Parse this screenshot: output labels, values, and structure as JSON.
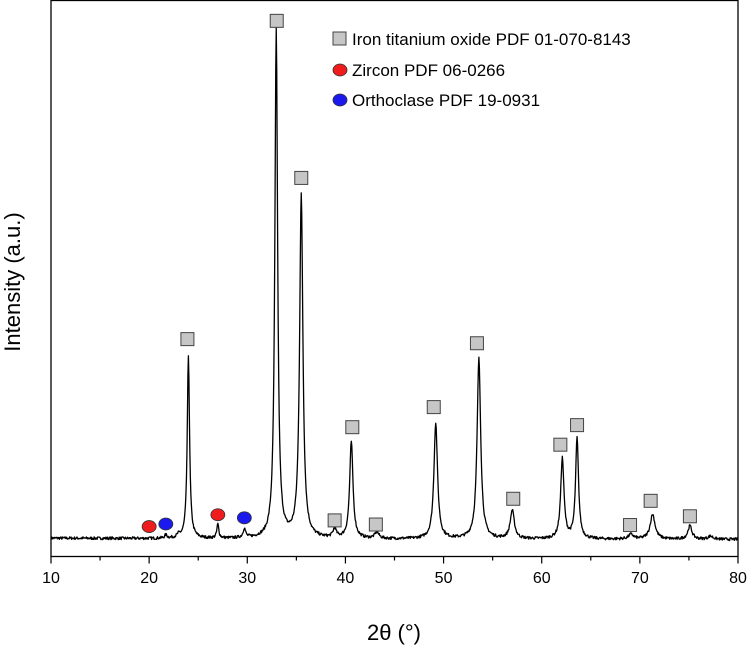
{
  "chart_data": {
    "type": "line",
    "xlabel": "2θ (°)",
    "ylabel": "Intensity (a.u.)",
    "xlim": [
      10,
      80
    ],
    "ylim": [
      0,
      100
    ],
    "x_ticks": [
      "10",
      "20",
      "30",
      "40",
      "50",
      "60",
      "70",
      "80"
    ],
    "y_ticks_shown": false,
    "grid": false,
    "legend_position": "top-right",
    "series": [
      {
        "name": "",
        "color": "#000000",
        "baseline": 0.3,
        "peaks": [
          {
            "x": 21.7,
            "height": 0.6,
            "width": 0.15
          },
          {
            "x": 23.0,
            "height": 0.5,
            "width": 0.2
          },
          {
            "x": 24.0,
            "height": 35.5,
            "width": 0.14
          },
          {
            "x": 27.0,
            "height": 2.7,
            "width": 0.12
          },
          {
            "x": 29.7,
            "height": 1.8,
            "width": 0.15
          },
          {
            "x": 32.95,
            "height": 98.5,
            "width": 0.17
          },
          {
            "x": 35.5,
            "height": 66.5,
            "width": 0.2
          },
          {
            "x": 38.9,
            "height": 1.7,
            "width": 0.2
          },
          {
            "x": 40.6,
            "height": 18.8,
            "width": 0.2
          },
          {
            "x": 43.2,
            "height": 1.2,
            "width": 0.25
          },
          {
            "x": 49.2,
            "height": 22.5,
            "width": 0.22
          },
          {
            "x": 53.6,
            "height": 35.0,
            "width": 0.22
          },
          {
            "x": 57.0,
            "height": 5.5,
            "width": 0.25
          },
          {
            "x": 62.1,
            "height": 15.6,
            "width": 0.2
          },
          {
            "x": 63.6,
            "height": 19.5,
            "width": 0.18
          },
          {
            "x": 69.1,
            "height": 0.9,
            "width": 0.3
          },
          {
            "x": 71.3,
            "height": 4.8,
            "width": 0.3
          },
          {
            "x": 75.1,
            "height": 2.6,
            "width": 0.25
          },
          {
            "x": 77.2,
            "height": 0.6,
            "width": 0.3
          }
        ]
      }
    ],
    "phase_markers": [
      {
        "phase": "iron titanium oxide",
        "x": 33.0,
        "y": 101.0
      },
      {
        "phase": "iron titanium oxide",
        "x": 35.5,
        "y": 70.5
      },
      {
        "phase": "iron titanium oxide",
        "x": 23.9,
        "y": 39.2
      },
      {
        "phase": "iron titanium oxide",
        "x": 38.9,
        "y": 4.0
      },
      {
        "phase": "iron titanium oxide",
        "x": 40.7,
        "y": 22.1
      },
      {
        "phase": "iron titanium oxide",
        "x": 43.1,
        "y": 3.2
      },
      {
        "phase": "iron titanium oxide",
        "x": 49.0,
        "y": 26.0
      },
      {
        "phase": "iron titanium oxide",
        "x": 53.4,
        "y": 38.4
      },
      {
        "phase": "iron titanium oxide",
        "x": 57.1,
        "y": 8.2
      },
      {
        "phase": "iron titanium oxide",
        "x": 61.9,
        "y": 18.7
      },
      {
        "phase": "iron titanium oxide",
        "x": 63.6,
        "y": 22.5
      },
      {
        "phase": "iron titanium oxide",
        "x": 69.0,
        "y": 3.1
      },
      {
        "phase": "iron titanium oxide",
        "x": 71.1,
        "y": 7.8
      },
      {
        "phase": "iron titanium oxide",
        "x": 75.1,
        "y": 4.8
      },
      {
        "phase": "zircon",
        "x": 20.0,
        "y": 2.8
      },
      {
        "phase": "zircon",
        "x": 27.0,
        "y": 5.1
      },
      {
        "phase": "orthoclase",
        "x": 21.7,
        "y": 3.3
      },
      {
        "phase": "orthoclase",
        "x": 29.7,
        "y": 4.5
      }
    ],
    "legend": [
      {
        "phase": "iron titanium oxide",
        "label": "Iron titanium oxide PDF 01-070-8143",
        "marker": "square",
        "color": "#c6c6c6"
      },
      {
        "phase": "zircon",
        "label": "Zircon PDF 06-0266",
        "marker": "circle",
        "color": "#ee1c1c"
      },
      {
        "phase": "orthoclase",
        "label": "Orthoclase PDF 19-0931",
        "marker": "circle",
        "color": "#1a1aee"
      }
    ]
  }
}
